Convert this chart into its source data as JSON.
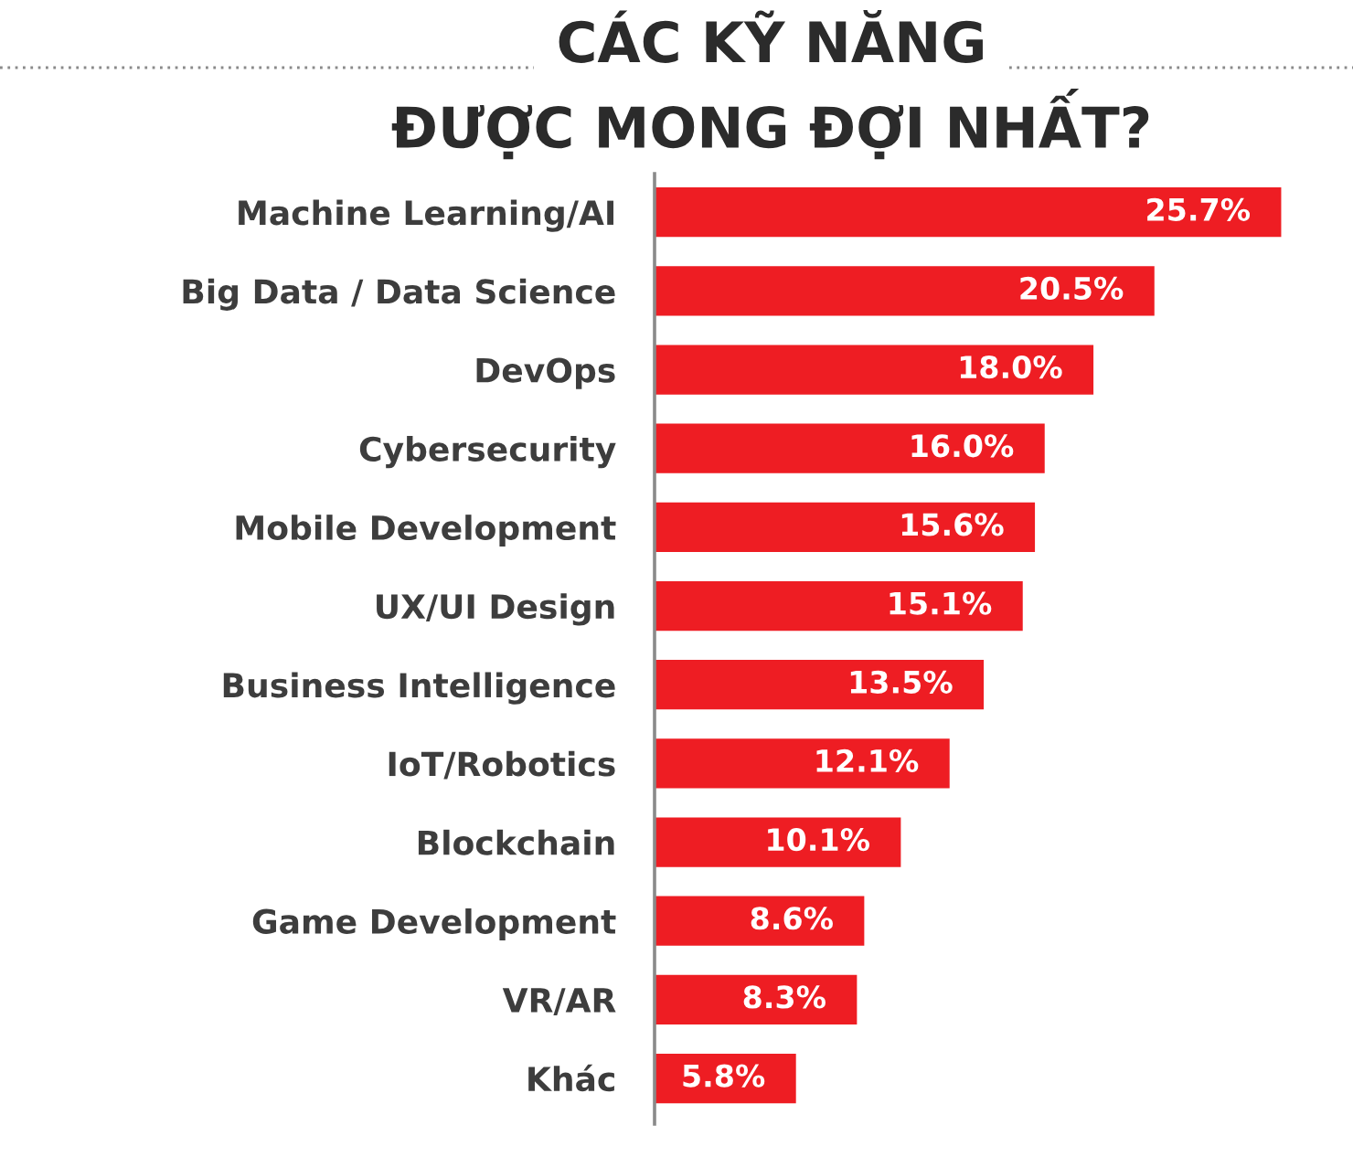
{
  "chart_data": {
    "type": "bar",
    "orientation": "horizontal",
    "title": "CÁC KỸ NĂNG\nĐƯỢC MONG ĐỢI NHẤT?",
    "categories": [
      "Machine Learning/AI",
      "Big Data / Data Science",
      "DevOps",
      "Cybersecurity",
      "Mobile Development",
      "UX/UI Design",
      "Business Intelligence",
      "IoT/Robotics",
      "Blockchain",
      "Game Development",
      "VR/AR",
      "Khác"
    ],
    "values": [
      25.7,
      20.5,
      18.0,
      16.0,
      15.6,
      15.1,
      13.5,
      12.1,
      10.1,
      8.6,
      8.3,
      5.8
    ],
    "value_labels": [
      "25.7%",
      "20.5%",
      "18.0%",
      "16.0%",
      "15.6%",
      "15.1%",
      "13.5%",
      "12.1%",
      "10.1%",
      "8.6%",
      "8.3%",
      "5.8%"
    ],
    "color": "#ee1d23",
    "tick_labels": "y",
    "grid": false,
    "legend": false
  }
}
